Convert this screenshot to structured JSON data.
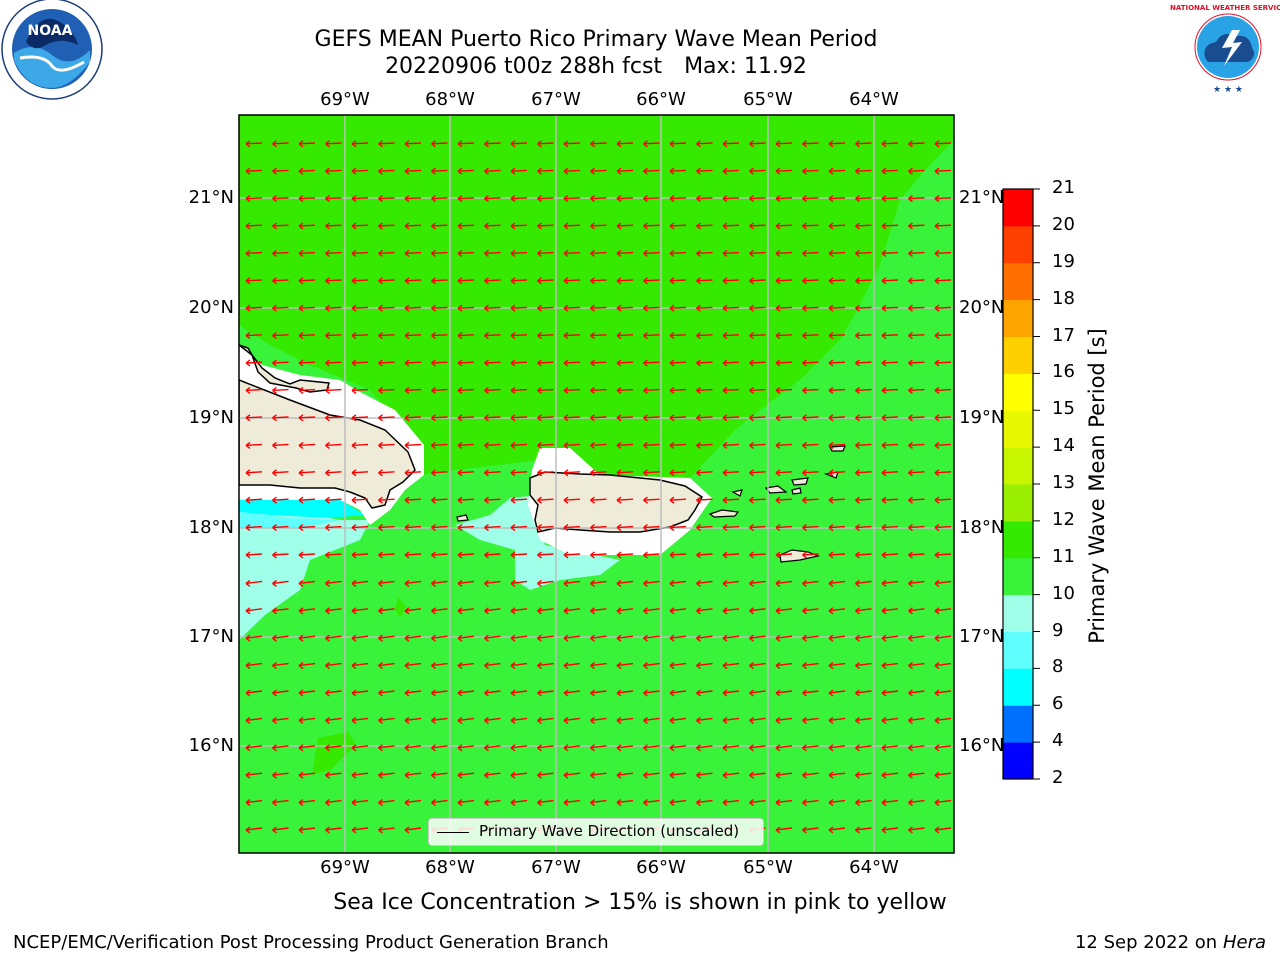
{
  "header": {
    "title_line1": "GEFS MEAN Puerto Rico Primary Wave Mean Period",
    "run": "20220906 t00z 288h fcst",
    "max": "Max: 11.92"
  },
  "logos": {
    "noaa_text": "NOAA",
    "noaa_ring_text": "NATIONAL OCEANIC AND ATMOSPHERIC ADMINISTRATION · U.S. DEPARTMENT OF COMMERCE",
    "nws_ring_text": "NATIONAL WEATHER SERVICE"
  },
  "map": {
    "lon_labels": [
      "69°W",
      "68°W",
      "67°W",
      "66°W",
      "65°W",
      "64°W"
    ],
    "lat_labels": [
      "21°N",
      "20°N",
      "19°N",
      "18°N",
      "17°N",
      "16°N"
    ],
    "legend_label": "Primary Wave Direction (unscaled)",
    "arrow_color": "#ff0000",
    "land_color": "#efebd9"
  },
  "colorbar": {
    "label": "Primary Wave Mean Period [s]",
    "ticks": [
      "2",
      "4",
      "6",
      "8",
      "9",
      "10",
      "11",
      "12",
      "13",
      "14",
      "15",
      "16",
      "17",
      "18",
      "19",
      "20",
      "21"
    ],
    "colors": [
      "#0000ff",
      "#0070ff",
      "#00ffff",
      "#60ffff",
      "#a0ffe8",
      "#39f23a",
      "#35ea00",
      "#9aef00",
      "#c8f500",
      "#e8f800",
      "#ffff00",
      "#ffd000",
      "#ffa500",
      "#ff7000",
      "#ff4000",
      "#ff0000"
    ]
  },
  "note": "Sea Ice Concentration > 15% is shown in pink to yellow",
  "footer": {
    "left": "NCEP/EMC/Verification Post Processing Product Generation Branch",
    "date": "12 Sep 2022 on",
    "host": "Hera"
  }
}
